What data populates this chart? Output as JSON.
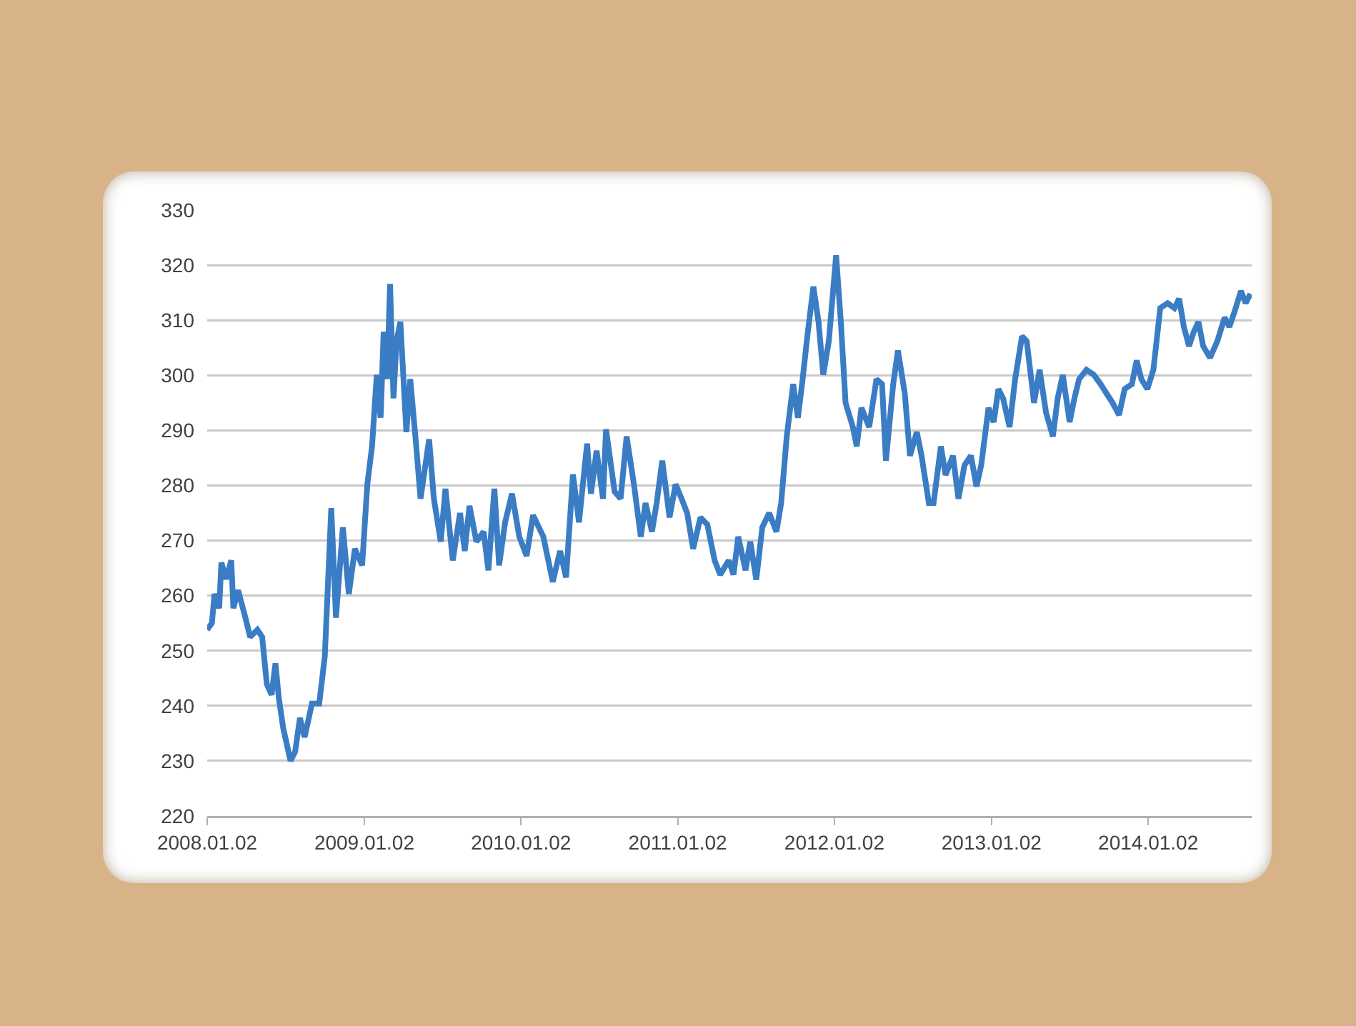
{
  "chart_data": {
    "type": "line",
    "x": [
      "2008-01-02",
      "2008-01-13",
      "2008-01-19",
      "2008-01-30",
      "2008-02-04",
      "2008-02-15",
      "2008-02-27",
      "2008-03-03",
      "2008-03-14",
      "2008-03-31",
      "2008-04-11",
      "2008-04-28",
      "2008-05-09",
      "2008-05-20",
      "2008-05-31",
      "2008-06-09",
      "2008-06-17",
      "2008-06-27",
      "2008-07-14",
      "2008-07-25",
      "2008-08-05",
      "2008-08-16",
      "2008-09-02",
      "2008-09-19",
      "2008-10-02",
      "2008-10-17",
      "2008-10-28",
      "2008-11-13",
      "2008-11-27",
      "2008-12-11",
      "2008-12-28",
      "2009-01-09",
      "2009-01-20",
      "2009-01-31",
      "2009-02-09",
      "2009-02-16",
      "2009-02-24",
      "2009-03-03",
      "2009-03-11",
      "2009-03-18",
      "2009-03-27",
      "2009-04-10",
      "2009-04-19",
      "2009-05-02",
      "2009-05-13",
      "2009-06-02",
      "2009-06-13",
      "2009-06-29",
      "2009-07-10",
      "2009-07-27",
      "2009-08-13",
      "2009-08-24",
      "2009-09-04",
      "2009-09-20",
      "2009-10-07",
      "2009-10-18",
      "2009-11-01",
      "2009-11-12",
      "2009-11-26",
      "2009-12-12",
      "2009-12-29",
      "2010-01-15",
      "2010-01-30",
      "2010-02-23",
      "2010-03-17",
      "2010-04-03",
      "2010-04-17",
      "2010-05-03",
      "2010-05-17",
      "2010-06-05",
      "2010-06-14",
      "2010-06-27",
      "2010-07-12",
      "2010-07-19",
      "2010-08-08",
      "2010-08-22",
      "2010-09-05",
      "2010-09-22",
      "2010-10-08",
      "2010-10-19",
      "2010-11-03",
      "2010-11-14",
      "2010-11-27",
      "2010-12-14",
      "2010-12-28",
      "2011-01-11",
      "2011-01-24",
      "2011-02-07",
      "2011-02-24",
      "2011-03-12",
      "2011-03-29",
      "2011-04-11",
      "2011-05-01",
      "2011-05-12",
      "2011-05-23",
      "2011-06-09",
      "2011-06-20",
      "2011-07-04",
      "2011-07-18",
      "2011-08-03",
      "2011-08-20",
      "2011-08-31",
      "2011-09-13",
      "2011-09-28",
      "2011-10-09",
      "2011-10-20",
      "2011-10-31",
      "2011-11-14",
      "2011-11-26",
      "2011-12-07",
      "2011-12-20",
      "2012-01-06",
      "2012-01-17",
      "2012-01-28",
      "2012-02-14",
      "2012-02-23",
      "2012-03-05",
      "2012-03-23",
      "2012-04-09",
      "2012-04-22",
      "2012-05-01",
      "2012-05-18",
      "2012-05-29",
      "2012-06-14",
      "2012-06-26",
      "2012-07-12",
      "2012-07-23",
      "2012-08-09",
      "2012-08-20",
      "2012-09-06",
      "2012-09-17",
      "2012-10-04",
      "2012-10-17",
      "2012-10-31",
      "2012-11-15",
      "2012-11-28",
      "2012-12-09",
      "2012-12-26",
      "2013-01-07",
      "2013-01-18",
      "2013-01-29",
      "2013-02-13",
      "2013-02-26",
      "2013-03-14",
      "2013-03-25",
      "2013-04-11",
      "2013-04-24",
      "2013-05-09",
      "2013-05-25",
      "2013-06-05",
      "2013-06-17",
      "2013-07-03",
      "2013-07-14",
      "2013-07-25",
      "2013-08-11",
      "2013-08-28",
      "2013-09-13",
      "2013-09-27",
      "2013-10-11",
      "2013-10-26",
      "2013-11-08",
      "2013-11-25",
      "2013-12-06",
      "2013-12-17",
      "2013-12-31",
      "2014-01-14",
      "2014-01-30",
      "2014-02-16",
      "2014-03-04",
      "2014-03-15",
      "2014-03-26",
      "2014-04-07",
      "2014-04-18",
      "2014-04-29",
      "2014-05-10",
      "2014-05-26",
      "2014-06-12",
      "2014-06-29",
      "2014-07-10",
      "2014-07-21",
      "2014-08-06",
      "2014-08-17",
      "2014-08-28"
    ],
    "series": [
      {
        "color": "#3b7dc4",
        "values": [
          253.8,
          255,
          260.3,
          257.7,
          266,
          263,
          266.4,
          257.7,
          261,
          256,
          252.5,
          253.8,
          252.5,
          243.9,
          242,
          247.7,
          241.3,
          236,
          230,
          231.7,
          237.8,
          234.3,
          240.4,
          240.4,
          249,
          275.9,
          256,
          272.4,
          260.3,
          268.5,
          265.5,
          280.2,
          287.1,
          300.1,
          292.3,
          307.9,
          299.3,
          316.6,
          295.8,
          306.2,
          309.7,
          289.7,
          299.3,
          288,
          277.6,
          288.4,
          277.6,
          269.8,
          279.4,
          266.4,
          275,
          268.1,
          276.3,
          269.8,
          271.6,
          264.6,
          279.4,
          265.5,
          273.3,
          278.5,
          270.7,
          267.2,
          274.6,
          270.7,
          262.5,
          268.1,
          263.3,
          282,
          273.3,
          287.6,
          278.5,
          286.3,
          277.6,
          290.2,
          278.9,
          277.6,
          288.9,
          280.2,
          270.7,
          276.8,
          271.6,
          276.8,
          284.5,
          274.2,
          280.2,
          277.6,
          275,
          268.5,
          274.2,
          272.9,
          266.4,
          263.8,
          266.4,
          263.8,
          270.7,
          264.6,
          269.8,
          262.9,
          272.4,
          275,
          271.6,
          276.8,
          288.9,
          298.4,
          292.3,
          299.3,
          307.1,
          316.1,
          309.7,
          300.1,
          306.2,
          321.8,
          309.7,
          295,
          290.6,
          287.1,
          294.1,
          290.6,
          299.3,
          298.4,
          284.5,
          298.4,
          304.5,
          296.7,
          285.4,
          289.7,
          285.4,
          276.8,
          276.8,
          287.1,
          281.9,
          285.4,
          277.6,
          283.7,
          285.4,
          279.8,
          283.7,
          294.1,
          291.5,
          297.5,
          295.8,
          290.6,
          299.3,
          307.1,
          306.2,
          295,
          301,
          293.2,
          288.9,
          295.8,
          300.1,
          291.5,
          295.8,
          299.3,
          301,
          300.1,
          298.4,
          296.7,
          295,
          292.8,
          297.5,
          298.4,
          302.7,
          299.3,
          297.5,
          301,
          312.2,
          313.1,
          312.2,
          313.9,
          308.8,
          305.3,
          307.9,
          309.7,
          305.3,
          303.2,
          306.2,
          310.5,
          308.8,
          311.3,
          315.3,
          313.1,
          314.8
        ]
      }
    ],
    "xlim": [
      "2008-01-02",
      "2014-08-31"
    ],
    "xticks": [
      {
        "value": "2008-01-02",
        "label": "2008.01.02"
      },
      {
        "value": "2009-01-02",
        "label": "2009.01.02"
      },
      {
        "value": "2010-01-02",
        "label": "2010.01.02"
      },
      {
        "value": "2011-01-02",
        "label": "2011.01.02"
      },
      {
        "value": "2012-01-02",
        "label": "2012.01.02"
      },
      {
        "value": "2013-01-02",
        "label": "2013.01.02"
      },
      {
        "value": "2014-01-02",
        "label": "2014.01.02"
      }
    ],
    "ylim": [
      220,
      330
    ],
    "yticks": [
      220,
      230,
      240,
      250,
      260,
      270,
      280,
      290,
      300,
      310,
      320,
      330
    ],
    "grid": "y"
  }
}
